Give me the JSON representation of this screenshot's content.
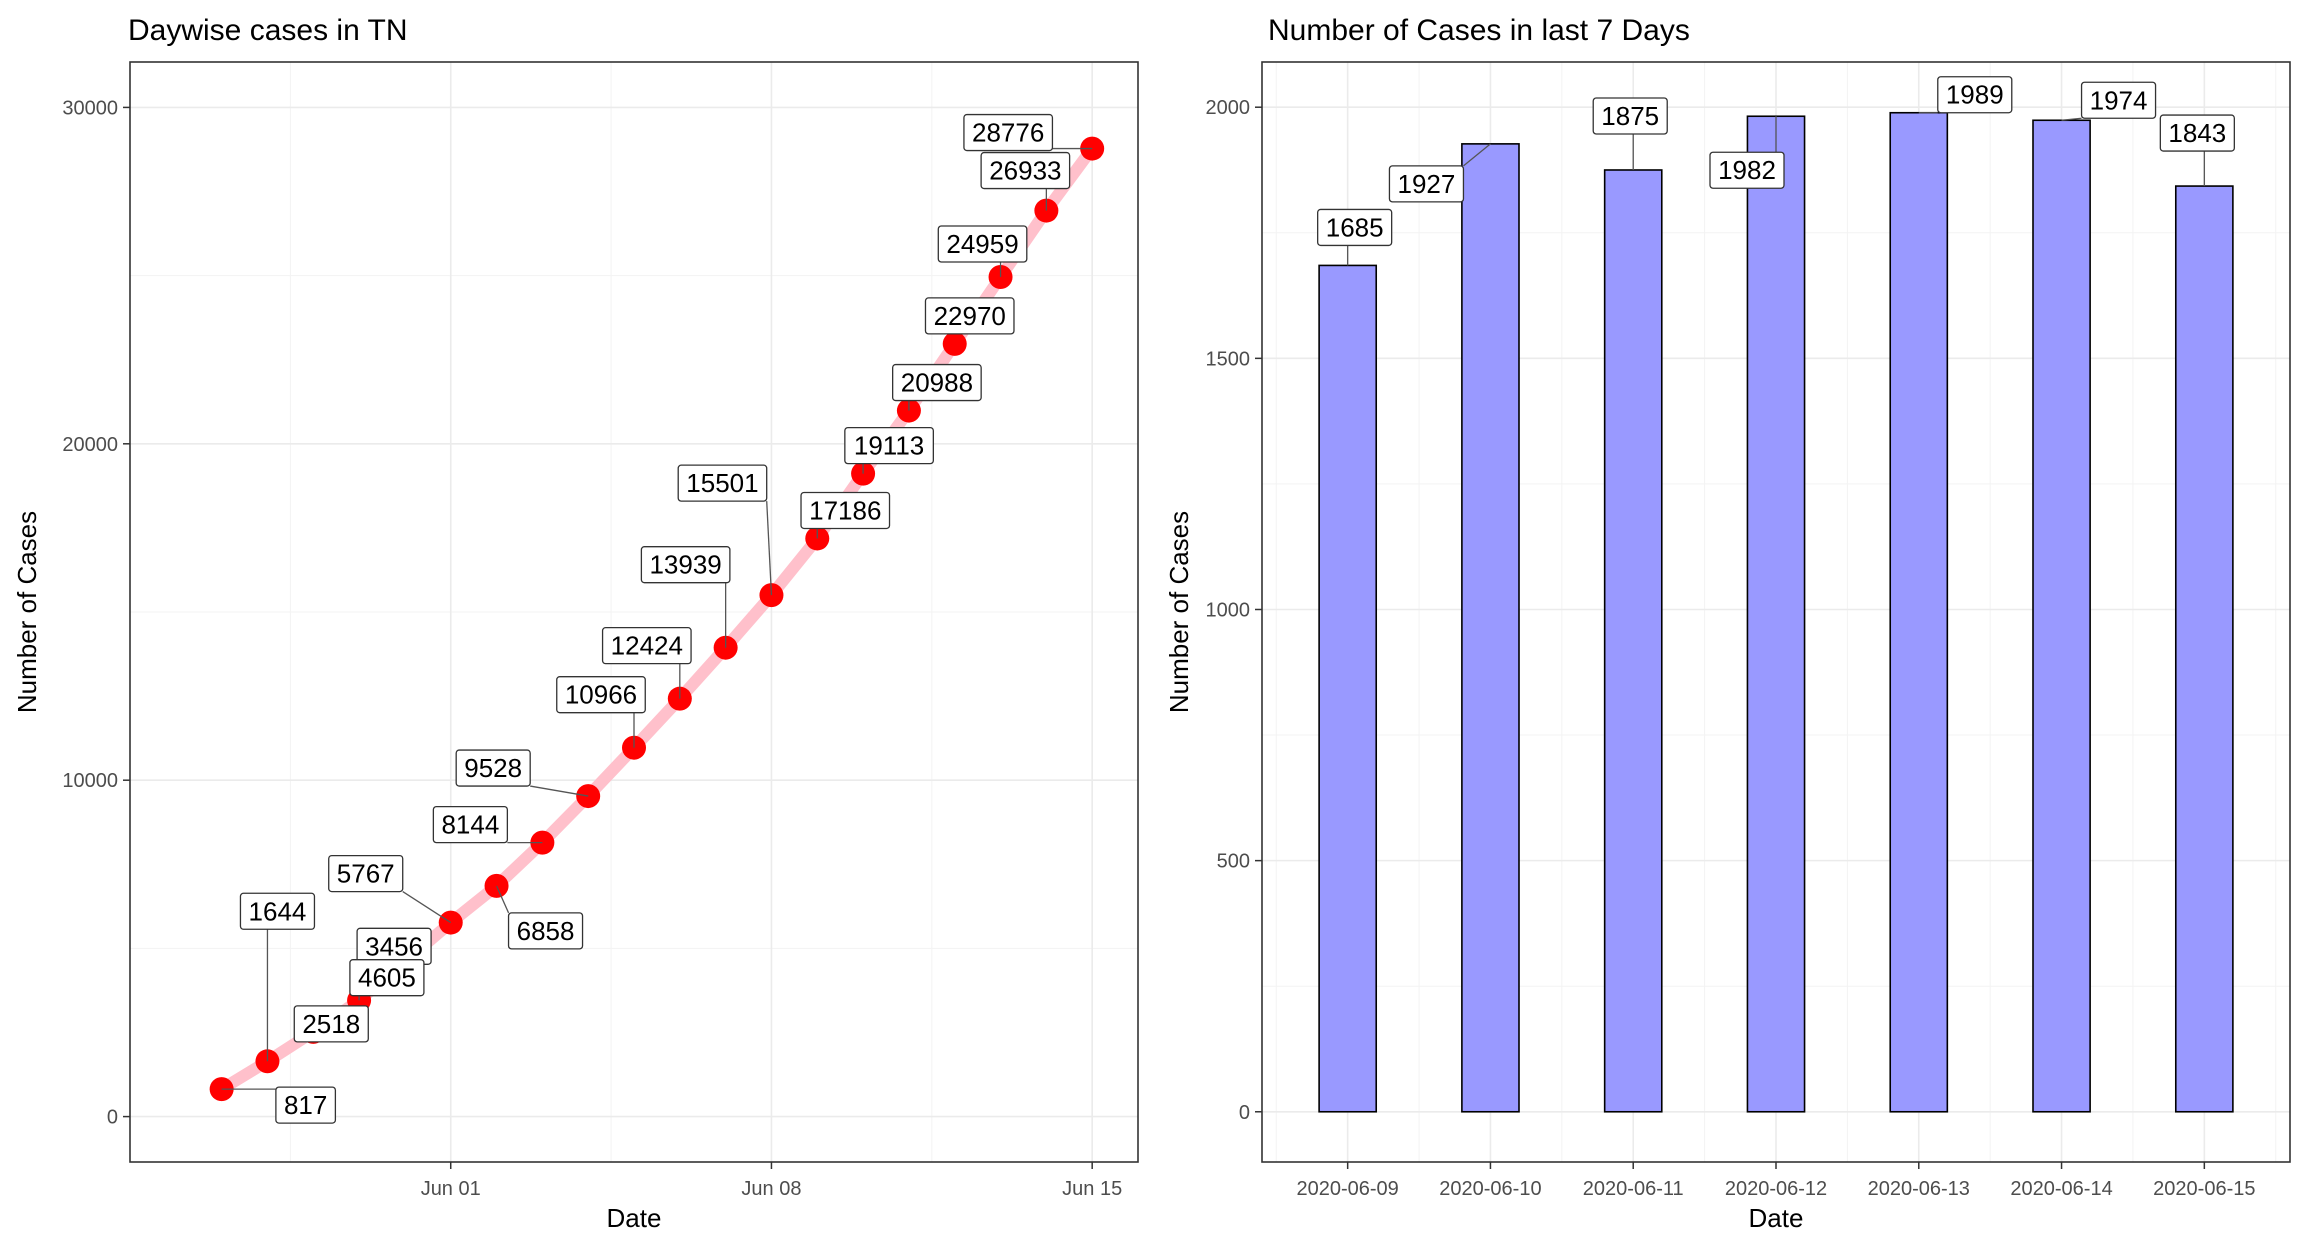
{
  "chart_data": [
    {
      "type": "line",
      "title": "Daywise cases in TN",
      "xlabel": "Date",
      "ylabel": "Number of Cases",
      "x_range": [
        "2020-05-25",
        "2020-06-16"
      ],
      "xticks": [
        {
          "date": "2020-06-01",
          "label": "Jun 01"
        },
        {
          "date": "2020-06-08",
          "label": "Jun 08"
        },
        {
          "date": "2020-06-15",
          "label": "Jun 15"
        }
      ],
      "ylim": [
        0,
        30000
      ],
      "yticks": [
        0,
        10000,
        20000,
        30000
      ],
      "grid": true,
      "line_color": "#ffc0cb",
      "point_color": "#ff0000",
      "points": [
        {
          "date": "2020-05-27",
          "value": 817
        },
        {
          "date": "2020-05-28",
          "value": 1644
        },
        {
          "date": "2020-05-29",
          "value": 2518
        },
        {
          "date": "2020-05-30",
          "value": 3456
        },
        {
          "date": "2020-05-31",
          "value": 4605
        },
        {
          "date": "2020-06-01",
          "value": 5767
        },
        {
          "date": "2020-06-02",
          "value": 6858
        },
        {
          "date": "2020-06-03",
          "value": 8144
        },
        {
          "date": "2020-06-04",
          "value": 9528
        },
        {
          "date": "2020-06-05",
          "value": 10966
        },
        {
          "date": "2020-06-06",
          "value": 12424
        },
        {
          "date": "2020-06-07",
          "value": 13939
        },
        {
          "date": "2020-06-08",
          "value": 15501
        },
        {
          "date": "2020-06-09",
          "value": 17186
        },
        {
          "date": "2020-06-10",
          "value": 19113
        },
        {
          "date": "2020-06-11",
          "value": 20988
        },
        {
          "date": "2020-06-12",
          "value": 22970
        },
        {
          "date": "2020-06-13",
          "value": 24959
        },
        {
          "date": "2020-06-14",
          "value": 26933
        },
        {
          "date": "2020-06-15",
          "value": 28776
        }
      ]
    },
    {
      "type": "bar",
      "title": "Number of Cases in last 7 Days",
      "xlabel": "Date",
      "ylabel": "Number of Cases",
      "categories": [
        "2020-06-09",
        "2020-06-10",
        "2020-06-11",
        "2020-06-12",
        "2020-06-13",
        "2020-06-14",
        "2020-06-15"
      ],
      "values": [
        1685,
        1927,
        1875,
        1982,
        1989,
        1974,
        1843
      ],
      "ylim": [
        0,
        2000
      ],
      "yticks": [
        0,
        500,
        1000,
        1500,
        2000
      ],
      "grid": true,
      "bar_color": "#9999ff",
      "bar_outline": "#000000"
    }
  ]
}
